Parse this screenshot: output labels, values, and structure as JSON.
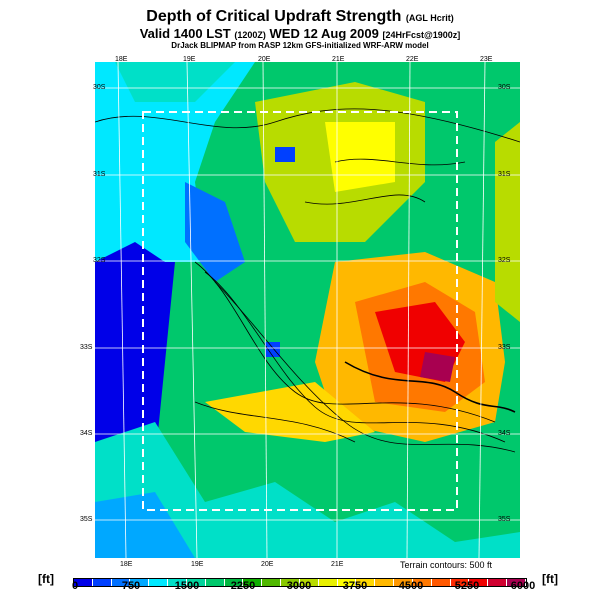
{
  "header": {
    "title": "Depth of Critical Updraft Strength",
    "title_note": "(AGL Hcrit)",
    "valid": "Valid 1400 LST",
    "valid_z": "(1200Z)",
    "valid_date": "WED 12 Aug 2009",
    "forecast": "[24HrFcst@1900z]",
    "credit": "DrJack BLIPMAP from RASP 12km GFS-initialized WRF-ARW model"
  },
  "map": {
    "top_lon_labels": [
      "18E",
      "19E",
      "20E",
      "21E",
      "22E",
      "23E"
    ],
    "bottom_lon_labels": [
      "18E",
      "19E",
      "20E",
      "21E"
    ],
    "left_lat_labels": [
      "30S",
      "31S",
      "32S",
      "33S",
      "34S",
      "35S"
    ],
    "right_lat_labels": [
      "30S",
      "31S",
      "32S",
      "33S",
      "34S",
      "35S"
    ],
    "terrain_note": "Terrain contours: 500 ft"
  },
  "legend": {
    "unit_left": "[ft]",
    "unit_right": "[ft]",
    "ticks": [
      "0",
      "750",
      "1500",
      "2250",
      "3000",
      "3750",
      "4500",
      "5250",
      "6000"
    ],
    "colors": [
      "#0000e8",
      "#0040ff",
      "#0070ff",
      "#00a8ff",
      "#00e8ff",
      "#00e0c8",
      "#00d49c",
      "#00c86c",
      "#00b840",
      "#10b000",
      "#50b800",
      "#88c800",
      "#b8dc00",
      "#e8f000",
      "#ffff00",
      "#ffd800",
      "#ffb800",
      "#ff9800",
      "#ff7800",
      "#ff5800",
      "#ff2800",
      "#f00000",
      "#d00030",
      "#a80050"
    ]
  }
}
